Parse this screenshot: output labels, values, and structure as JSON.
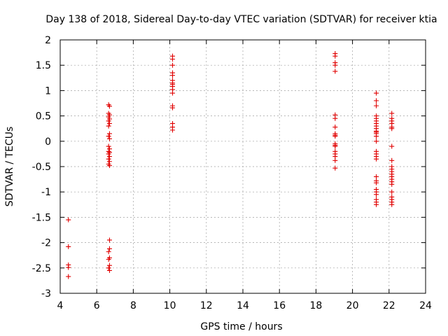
{
  "chart_data": {
    "type": "scatter",
    "title": "Day 138 of 2018, Sidereal Day-to-day VTEC variation (SDTVAR) for receiver ktia",
    "xlabel": "GPS time / hours",
    "ylabel": "SDTVAR / TECUs",
    "xlim": [
      4,
      24
    ],
    "ylim": [
      -3,
      2
    ],
    "xticks": [
      4,
      6,
      8,
      10,
      12,
      14,
      16,
      18,
      20,
      22,
      24
    ],
    "yticks": [
      2,
      1.5,
      1,
      0.5,
      0,
      -0.5,
      -1,
      -1.5,
      -2,
      -2.5,
      -3
    ],
    "xtick_labels": [
      "4",
      "6",
      "8",
      "10",
      "12",
      "14",
      "16",
      "18",
      "20",
      "22",
      "24"
    ],
    "ytick_labels": [
      "2",
      "1.5",
      "1",
      "0.5",
      "0",
      "-0.5",
      "-1",
      "-1.5",
      "-2",
      "-2.5",
      "-3"
    ],
    "grid": true,
    "marker": "+",
    "color": "#e00000",
    "series": [
      {
        "name": "SDTVAR",
        "points": [
          [
            4.45,
            -1.55
          ],
          [
            4.45,
            -2.08
          ],
          [
            4.45,
            -2.44
          ],
          [
            4.45,
            -2.49
          ],
          [
            4.45,
            -2.67
          ],
          [
            6.65,
            0.72
          ],
          [
            6.7,
            0.69
          ],
          [
            6.65,
            0.55
          ],
          [
            6.7,
            0.52
          ],
          [
            6.65,
            0.48
          ],
          [
            6.7,
            0.44
          ],
          [
            6.65,
            0.4
          ],
          [
            6.7,
            0.35
          ],
          [
            6.65,
            0.3
          ],
          [
            6.7,
            0.15
          ],
          [
            6.65,
            0.1
          ],
          [
            6.7,
            0.05
          ],
          [
            6.65,
            -0.1
          ],
          [
            6.7,
            -0.15
          ],
          [
            6.65,
            -0.2
          ],
          [
            6.7,
            -0.22
          ],
          [
            6.65,
            -0.25
          ],
          [
            6.7,
            -0.3
          ],
          [
            6.65,
            -0.35
          ],
          [
            6.7,
            -0.4
          ],
          [
            6.65,
            -0.45
          ],
          [
            6.7,
            -0.48
          ],
          [
            6.7,
            -1.95
          ],
          [
            6.7,
            -2.12
          ],
          [
            6.65,
            -2.18
          ],
          [
            6.7,
            -2.3
          ],
          [
            6.65,
            -2.33
          ],
          [
            6.7,
            -2.45
          ],
          [
            6.65,
            -2.5
          ],
          [
            6.7,
            -2.55
          ],
          [
            10.15,
            1.68
          ],
          [
            10.15,
            1.62
          ],
          [
            10.15,
            1.5
          ],
          [
            10.15,
            1.35
          ],
          [
            10.15,
            1.3
          ],
          [
            10.15,
            1.2
          ],
          [
            10.15,
            1.15
          ],
          [
            10.15,
            1.12
          ],
          [
            10.15,
            1.08
          ],
          [
            10.15,
            1.02
          ],
          [
            10.15,
            0.95
          ],
          [
            10.15,
            0.7
          ],
          [
            10.15,
            0.66
          ],
          [
            10.15,
            0.35
          ],
          [
            10.15,
            0.28
          ],
          [
            10.15,
            0.22
          ],
          [
            19.05,
            1.73
          ],
          [
            19.05,
            1.68
          ],
          [
            19.05,
            1.55
          ],
          [
            19.05,
            1.5
          ],
          [
            19.05,
            1.38
          ],
          [
            19.05,
            0.52
          ],
          [
            19.05,
            0.45
          ],
          [
            19.05,
            0.28
          ],
          [
            19.05,
            0.15
          ],
          [
            19.05,
            0.12
          ],
          [
            19.05,
            0.1
          ],
          [
            19.05,
            -0.05
          ],
          [
            19.05,
            -0.08
          ],
          [
            19.05,
            -0.1
          ],
          [
            19.05,
            -0.2
          ],
          [
            19.05,
            -0.25
          ],
          [
            19.05,
            -0.3
          ],
          [
            19.05,
            -0.38
          ],
          [
            19.05,
            -0.53
          ],
          [
            21.3,
            0.95
          ],
          [
            21.3,
            0.8
          ],
          [
            21.3,
            0.7
          ],
          [
            21.3,
            0.5
          ],
          [
            21.3,
            0.45
          ],
          [
            21.3,
            0.4
          ],
          [
            21.3,
            0.35
          ],
          [
            21.3,
            0.3
          ],
          [
            21.3,
            0.25
          ],
          [
            21.3,
            0.2
          ],
          [
            21.3,
            0.18
          ],
          [
            21.3,
            0.15
          ],
          [
            21.3,
            0.1
          ],
          [
            21.3,
            0.0
          ],
          [
            21.3,
            -0.2
          ],
          [
            21.3,
            -0.25
          ],
          [
            21.3,
            -0.3
          ],
          [
            21.3,
            -0.35
          ],
          [
            21.3,
            -0.7
          ],
          [
            21.3,
            -0.78
          ],
          [
            21.3,
            -0.82
          ],
          [
            21.3,
            -0.95
          ],
          [
            21.3,
            -1.0
          ],
          [
            21.3,
            -1.05
          ],
          [
            21.3,
            -1.15
          ],
          [
            21.3,
            -1.2
          ],
          [
            21.3,
            -1.25
          ],
          [
            22.15,
            0.55
          ],
          [
            22.15,
            0.45
          ],
          [
            22.15,
            0.4
          ],
          [
            22.15,
            0.35
          ],
          [
            22.15,
            0.28
          ],
          [
            22.15,
            0.25
          ],
          [
            22.15,
            -0.1
          ],
          [
            22.15,
            -0.38
          ],
          [
            22.15,
            -0.5
          ],
          [
            22.15,
            -0.55
          ],
          [
            22.15,
            -0.6
          ],
          [
            22.15,
            -0.65
          ],
          [
            22.15,
            -0.7
          ],
          [
            22.15,
            -0.75
          ],
          [
            22.15,
            -0.8
          ],
          [
            22.15,
            -0.85
          ],
          [
            22.15,
            -1.0
          ],
          [
            22.15,
            -1.1
          ],
          [
            22.15,
            -1.15
          ],
          [
            22.15,
            -1.2
          ],
          [
            22.15,
            -1.25
          ]
        ]
      }
    ]
  }
}
